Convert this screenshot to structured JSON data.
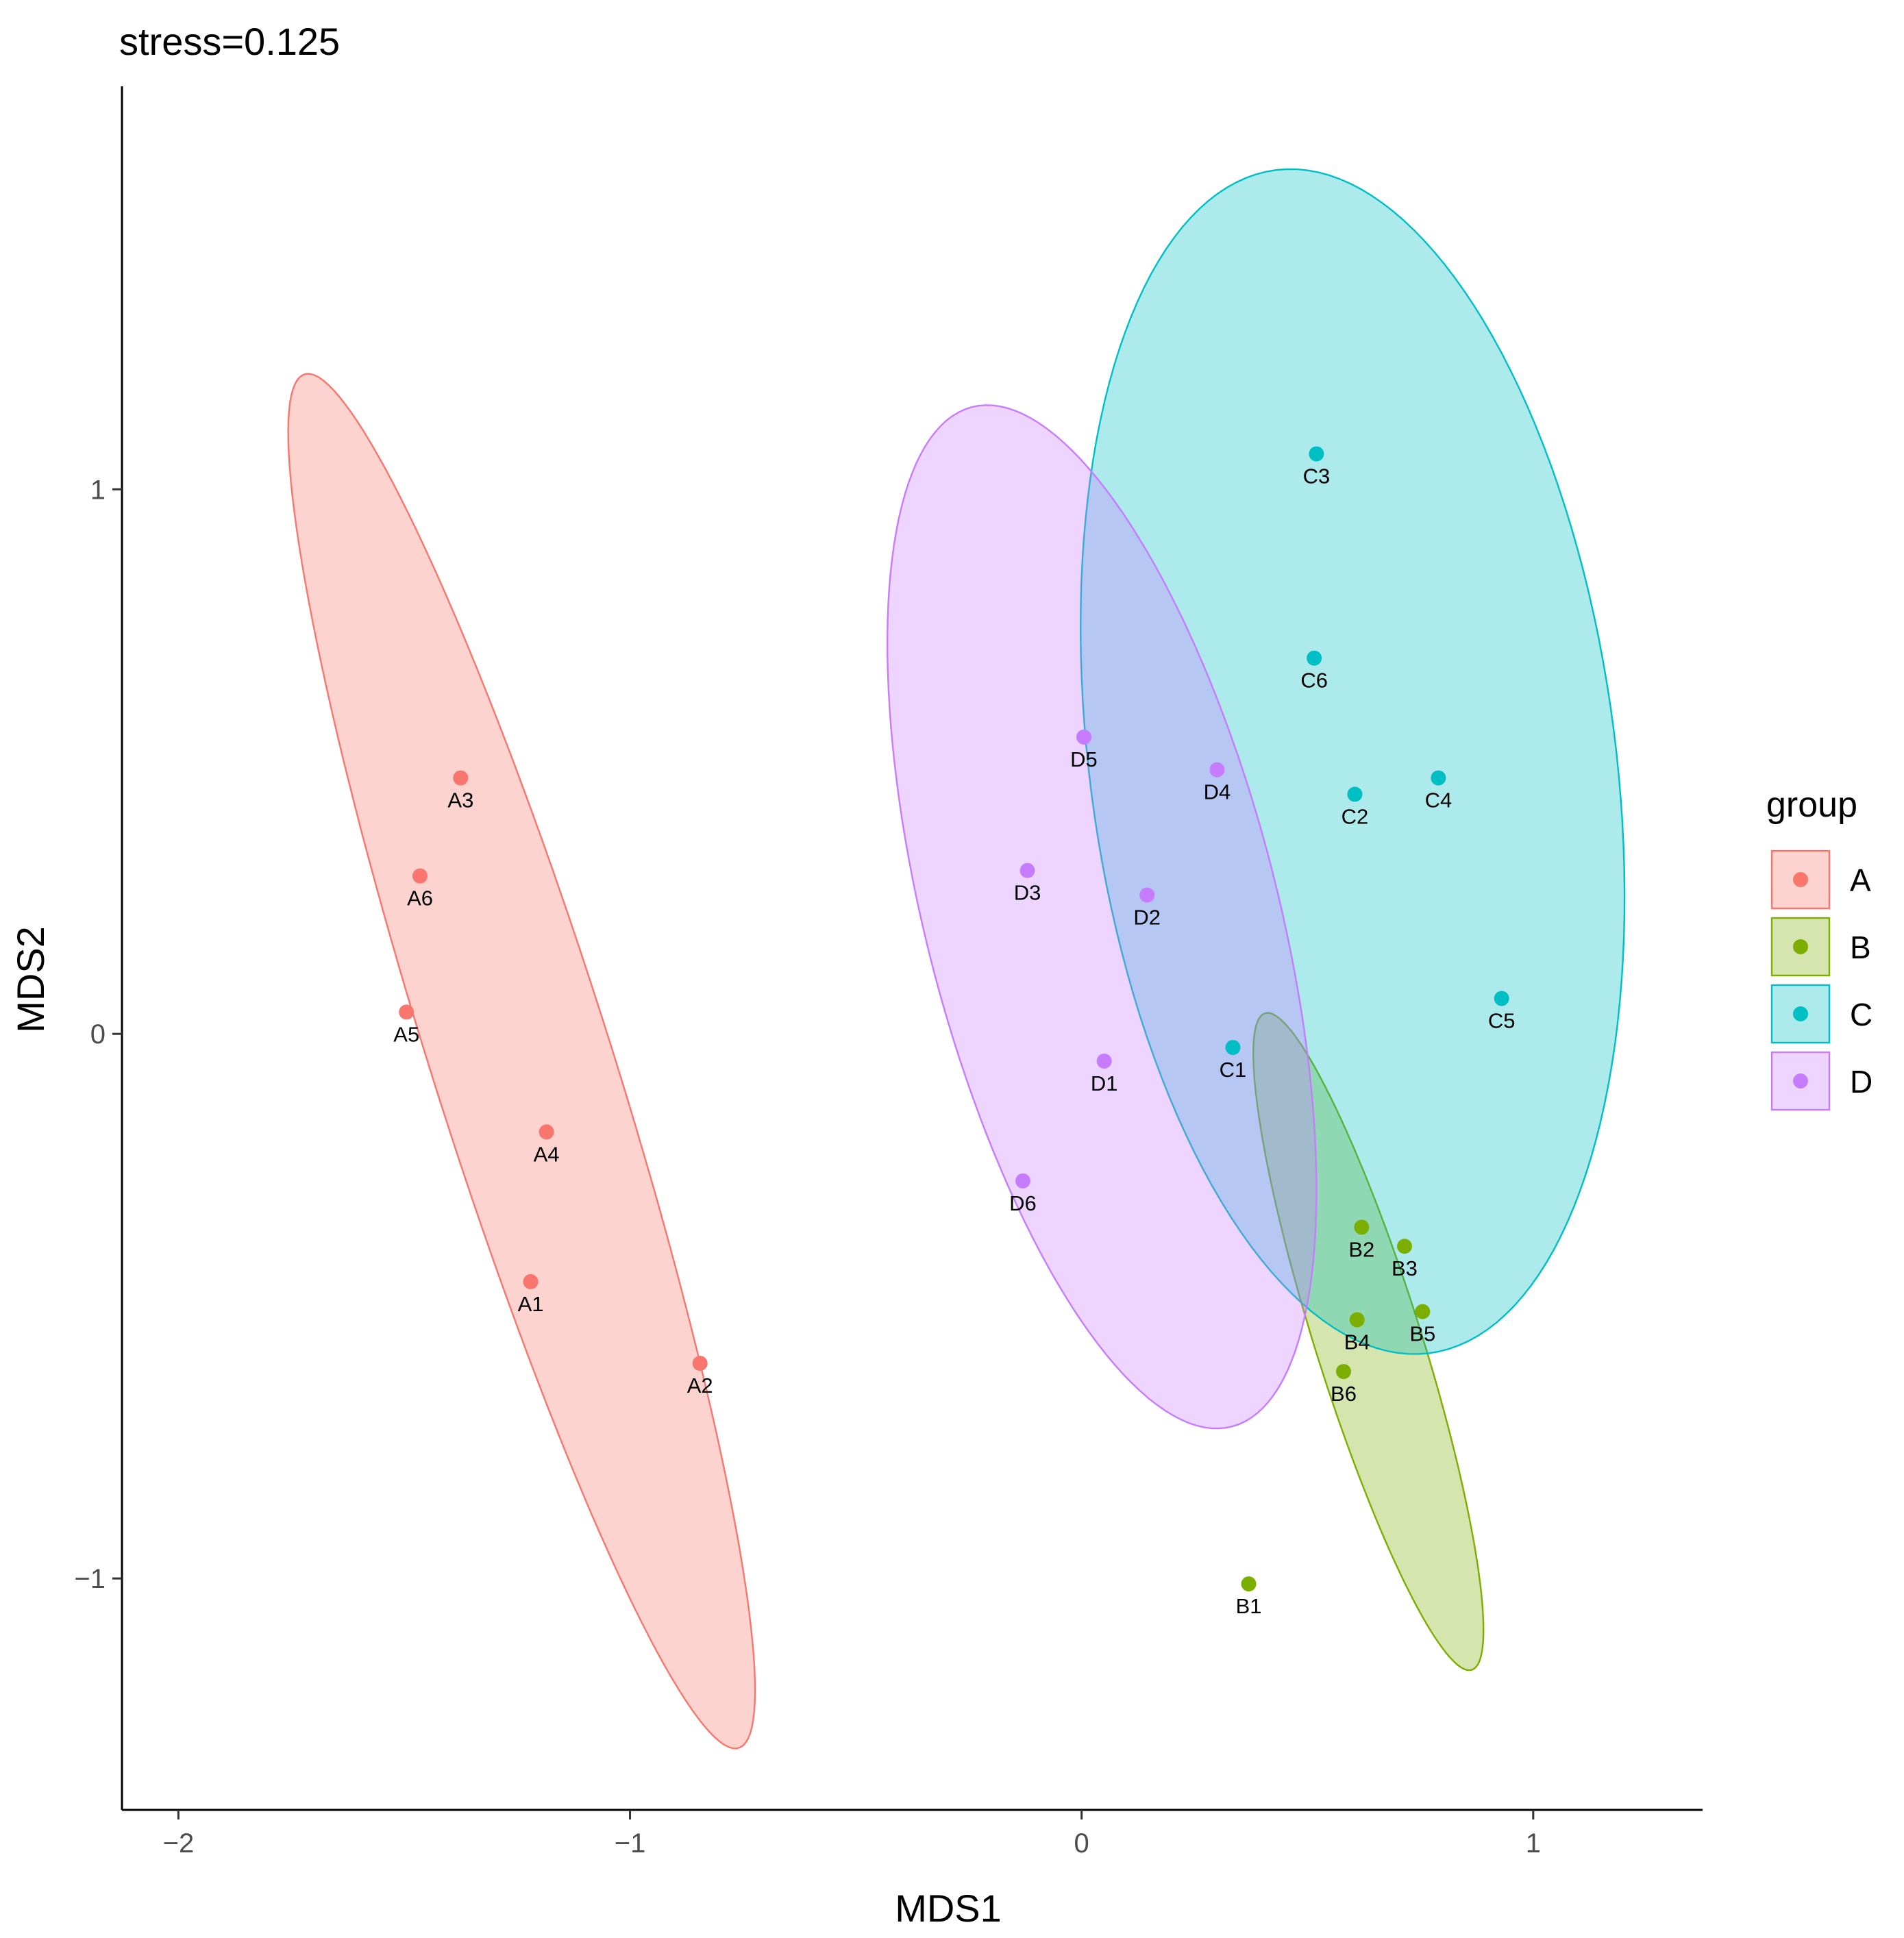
{
  "chart_data": {
    "type": "scatter",
    "title": "stress=0.125",
    "xlabel": "MDS1",
    "ylabel": "MDS2",
    "xlim": [
      -2.125,
      1.375
    ],
    "ylim": [
      -1.425,
      1.74
    ],
    "x_ticks": [
      -2,
      -1,
      0,
      1
    ],
    "x_tick_labels": [
      "−2",
      "−1",
      "0",
      "1"
    ],
    "y_ticks": [
      -1,
      0,
      1
    ],
    "y_tick_labels": [
      "−1",
      "0",
      "1"
    ],
    "grid": false,
    "legend": {
      "title": "group",
      "position": "right",
      "entries": [
        "A",
        "B",
        "C",
        "D"
      ]
    },
    "groups": [
      {
        "name": "A",
        "color": "#F8766D",
        "points": [
          {
            "label": "A1",
            "x": -1.22,
            "y": -0.455
          },
          {
            "label": "A2",
            "x": -0.845,
            "y": -0.605
          },
          {
            "label": "A3",
            "x": -1.375,
            "y": 0.47
          },
          {
            "label": "A4",
            "x": -1.185,
            "y": -0.18
          },
          {
            "label": "A5",
            "x": -1.495,
            "y": 0.04
          },
          {
            "label": "A6",
            "x": -1.465,
            "y": 0.29
          }
        ],
        "ellipse": {
          "cx": -1.24,
          "cy": -0.05,
          "rx": 1.35,
          "ry": 0.195,
          "angle_deg": -69
        }
      },
      {
        "name": "B",
        "color": "#7CAE00",
        "points": [
          {
            "label": "B1",
            "x": 0.37,
            "y": -1.01
          },
          {
            "label": "B2",
            "x": 0.62,
            "y": -0.355
          },
          {
            "label": "B3",
            "x": 0.715,
            "y": -0.39
          },
          {
            "label": "B4",
            "x": 0.61,
            "y": -0.525
          },
          {
            "label": "B5",
            "x": 0.755,
            "y": -0.51
          },
          {
            "label": "B6",
            "x": 0.58,
            "y": -0.62
          }
        ],
        "ellipse": {
          "cx": 0.635,
          "cy": -0.565,
          "rx": 0.645,
          "ry": 0.115,
          "angle_deg": -69
        }
      },
      {
        "name": "C",
        "color": "#00BFC4",
        "points": [
          {
            "label": "C1",
            "x": 0.335,
            "y": -0.025
          },
          {
            "label": "C2",
            "x": 0.605,
            "y": 0.44
          },
          {
            "label": "C3",
            "x": 0.52,
            "y": 1.065
          },
          {
            "label": "C4",
            "x": 0.79,
            "y": 0.47
          },
          {
            "label": "C5",
            "x": 0.93,
            "y": 0.065
          },
          {
            "label": "C6",
            "x": 0.515,
            "y": 0.69
          }
        ],
        "ellipse": {
          "cx": 0.6,
          "cy": 0.5,
          "rx": 1.1,
          "ry": 0.58,
          "angle_deg": -80
        }
      },
      {
        "name": "D",
        "color": "#C77CFF",
        "points": [
          {
            "label": "D1",
            "x": 0.05,
            "y": -0.05
          },
          {
            "label": "D2",
            "x": 0.145,
            "y": 0.255
          },
          {
            "label": "D3",
            "x": -0.12,
            "y": 0.3
          },
          {
            "label": "D4",
            "x": 0.3,
            "y": 0.485
          },
          {
            "label": "D5",
            "x": 0.005,
            "y": 0.545
          },
          {
            "label": "D6",
            "x": -0.13,
            "y": -0.27
          }
        ],
        "ellipse": {
          "cx": 0.045,
          "cy": 0.215,
          "rx": 0.98,
          "ry": 0.385,
          "angle_deg": -72
        }
      }
    ]
  }
}
